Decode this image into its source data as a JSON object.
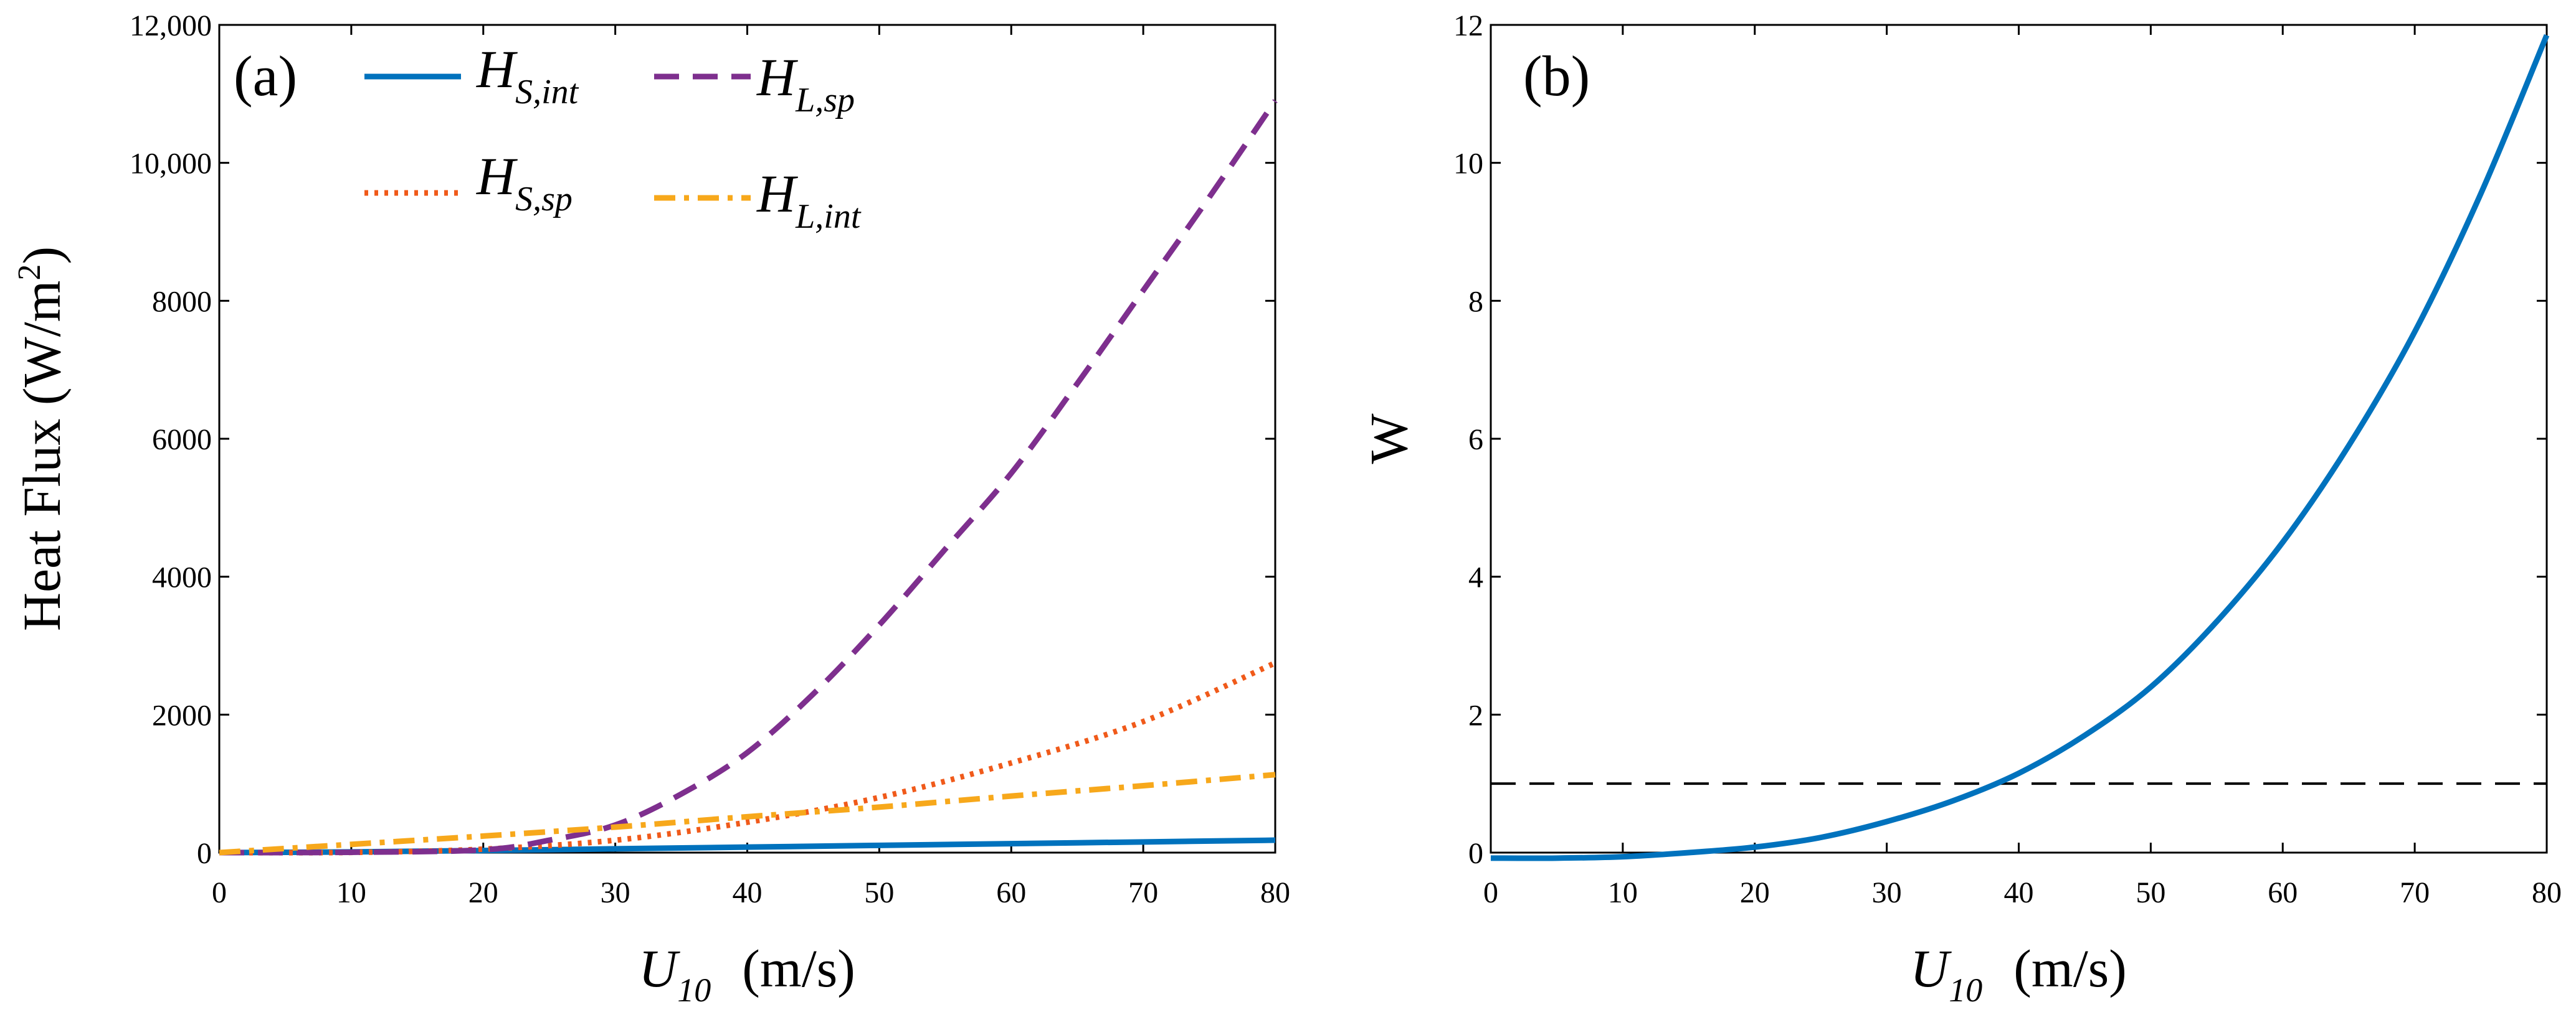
{
  "chart_data": [
    {
      "type": "line",
      "panel_label": "(a)",
      "xlabel_var": "U",
      "xlabel_sub": "10",
      "xlabel_unit": "(m/s)",
      "ylabel": "Heat Flux (W/m",
      "ylabel_sup": "2",
      "ylabel_close": ")",
      "xlim": [
        0,
        80
      ],
      "ylim": [
        0,
        12000
      ],
      "xticks": [
        0,
        10,
        20,
        30,
        40,
        50,
        60,
        70,
        80
      ],
      "xtick_labels": [
        "0",
        "10",
        "20",
        "30",
        "40",
        "50",
        "60",
        "70",
        "80"
      ],
      "yticks": [
        0,
        2000,
        4000,
        6000,
        8000,
        10000,
        12000
      ],
      "ytick_labels": [
        "0",
        "2000",
        "4000",
        "6000",
        "8000",
        "10,000",
        "12,000"
      ],
      "legend_position": "top-left",
      "series": [
        {
          "name": "H_S,int",
          "label_main": "H",
          "label_sub": "S,int",
          "color": "#0072BD",
          "style": "solid",
          "x": [
            0,
            10,
            20,
            30,
            40,
            50,
            60,
            70,
            80
          ],
          "y": [
            0,
            10,
            30,
            55,
            80,
            105,
            130,
            155,
            180
          ]
        },
        {
          "name": "H_S,sp",
          "label_main": "H",
          "label_sub": "S,sp",
          "color": "#F05A1A",
          "style": "dotted",
          "x": [
            0,
            10,
            20,
            30,
            40,
            50,
            60,
            70,
            80
          ],
          "y": [
            0,
            3,
            50,
            180,
            440,
            800,
            1300,
            1900,
            2750
          ]
        },
        {
          "name": "H_L,sp",
          "label_main": "H",
          "label_sub": "L,sp",
          "color": "#7E2F8E",
          "style": "dashed",
          "x": [
            0,
            10,
            20,
            25,
            30,
            35,
            40,
            45,
            50,
            55,
            60,
            65,
            70,
            75,
            80
          ],
          "y": [
            0,
            5,
            40,
            180,
            400,
            850,
            1450,
            2300,
            3300,
            4400,
            5500,
            6800,
            8150,
            9500,
            10900
          ]
        },
        {
          "name": "H_L,int",
          "label_main": "H",
          "label_sub": "L,int",
          "color": "#F7A81B",
          "style": "dashdot",
          "x": [
            0,
            10,
            20,
            30,
            40,
            50,
            60,
            70,
            80
          ],
          "y": [
            0,
            120,
            240,
            370,
            520,
            660,
            820,
            970,
            1130
          ]
        }
      ]
    },
    {
      "type": "line",
      "panel_label": "(b)",
      "xlabel_var": "U",
      "xlabel_sub": "10",
      "xlabel_unit": "(m/s)",
      "ylabel": "W",
      "xlim": [
        0,
        80
      ],
      "ylim": [
        0,
        12
      ],
      "xticks": [
        0,
        10,
        20,
        30,
        40,
        50,
        60,
        70,
        80
      ],
      "xtick_labels": [
        "0",
        "10",
        "20",
        "30",
        "40",
        "50",
        "60",
        "70",
        "80"
      ],
      "yticks": [
        0,
        2,
        4,
        6,
        8,
        10,
        12
      ],
      "ytick_labels": [
        "0",
        "2",
        "4",
        "6",
        "8",
        "10",
        "12"
      ],
      "series": [
        {
          "name": "W",
          "color": "#0072BD",
          "style": "solid",
          "x": [
            0,
            5,
            10,
            15,
            20,
            25,
            30,
            35,
            40,
            45,
            50,
            55,
            60,
            65,
            70,
            75,
            80
          ],
          "y": [
            -0.08,
            -0.08,
            -0.06,
            0.0,
            0.08,
            0.22,
            0.45,
            0.75,
            1.15,
            1.7,
            2.4,
            3.35,
            4.5,
            5.9,
            7.55,
            9.55,
            11.85
          ]
        }
      ],
      "reference_line": {
        "name": "W = 1",
        "y": 1,
        "color": "#000000",
        "style": "dashed"
      }
    }
  ]
}
